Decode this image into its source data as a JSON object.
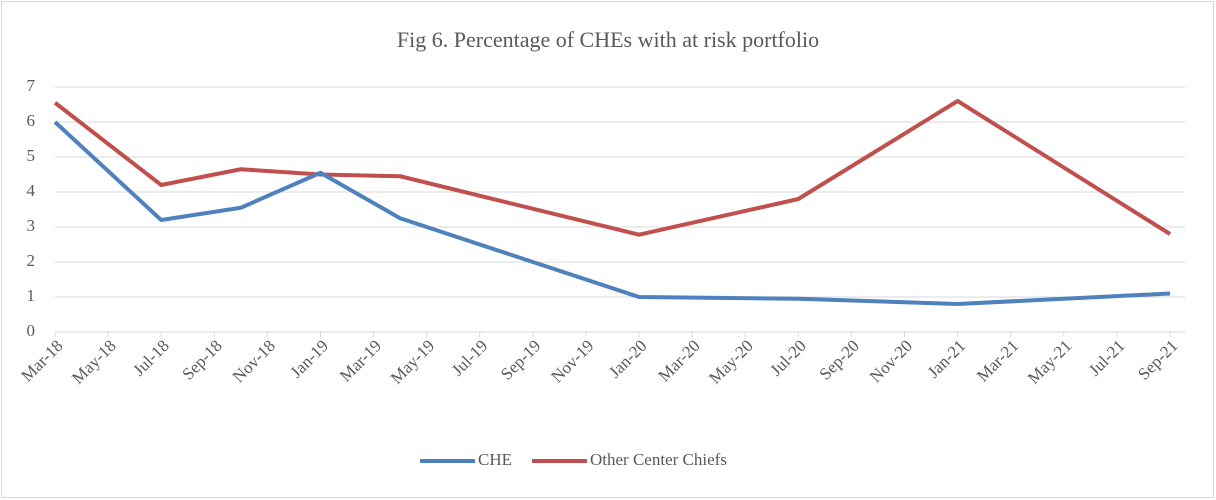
{
  "chart_data": {
    "type": "line",
    "title": "Fig 6. Percentage of CHEs with at risk portfolio",
    "x": [
      "Mar-18",
      "Jul-18",
      "Oct-18",
      "Jan-19",
      "Apr-19",
      "Jan-20",
      "Jul-20",
      "Jan-21",
      "Sep-21"
    ],
    "series": [
      {
        "name": "CHE",
        "color": "#4f81bd",
        "values": [
          6.0,
          3.2,
          3.55,
          4.55,
          3.25,
          1.0,
          0.95,
          0.8,
          1.1
        ]
      },
      {
        "name": "Other Center Chiefs",
        "color": "#c0504d",
        "values": [
          6.55,
          4.2,
          4.65,
          4.5,
          4.45,
          2.78,
          3.8,
          6.6,
          2.8
        ]
      }
    ],
    "xlim": [
      "Mar-18",
      "Sep-21"
    ],
    "xticks": [
      "Mar-18",
      "May-18",
      "Jul-18",
      "Sep-18",
      "Nov-18",
      "Jan-19",
      "Mar-19",
      "May-19",
      "Jul-19",
      "Sep-19",
      "Nov-19",
      "Jan-20",
      "Mar-20",
      "May-20",
      "Jul-20",
      "Sep-20",
      "Nov-20",
      "Jan-21",
      "Mar-21",
      "May-21",
      "Jul-21",
      "Sep-21"
    ],
    "ylim": [
      0,
      7
    ],
    "yticks": [
      0,
      1,
      2,
      3,
      4,
      5,
      6,
      7
    ],
    "grid": true,
    "legend": "bottom"
  }
}
